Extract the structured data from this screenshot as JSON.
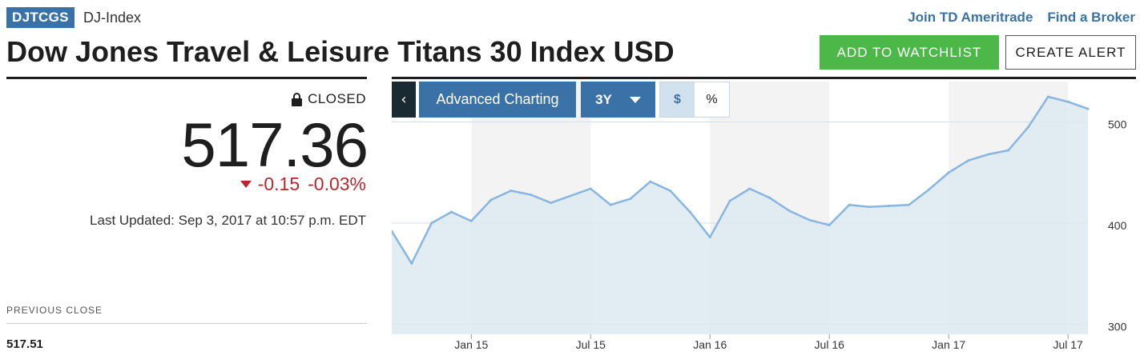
{
  "header": {
    "ticker": "DJTCGS",
    "index_type": "DJ-Index",
    "links": [
      "Join TD Ameritrade",
      "Find a Broker"
    ],
    "title": "Dow Jones Travel & Leisure Titans 30 Index USD",
    "watchlist_button": "ADD TO WATCHLIST",
    "alert_button": "CREATE ALERT"
  },
  "quote": {
    "status": "CLOSED",
    "status_icon": "lock-icon",
    "price": "517.36",
    "change": "-0.15",
    "change_percent": "-0.03%",
    "direction_icon": "down-triangle-icon",
    "last_updated": "Last Updated: Sep 3, 2017 at 10:57 p.m. EDT",
    "down_color": "#b5292d"
  },
  "stats": {
    "previous_close_label": "PREVIOUS CLOSE",
    "previous_close_value": "517.51"
  },
  "chart_toolbar": {
    "collapse_icon": "chevron-left-icon",
    "advanced_label": "Advanced Charting",
    "range_value": "3Y",
    "range_icon": "caret-down-icon",
    "dollar_label": "$",
    "percent_label": "%",
    "active_mode": "$",
    "accent_color": "#3a72a8"
  },
  "chart_data": {
    "type": "area",
    "x_ticks": [
      "Jan 15",
      "Jul 15",
      "Jan 16",
      "Jul 16",
      "Jan 17",
      "Jul 17"
    ],
    "y_ticks": [
      300,
      400,
      500
    ],
    "ylim": [
      290,
      540
    ],
    "grid": "horizontal",
    "line_color": "#88b6e0",
    "fill_color": "#dde9f1",
    "x": [
      "2014-09",
      "2014-10",
      "2014-11",
      "2014-12",
      "2015-01",
      "2015-02",
      "2015-03",
      "2015-04",
      "2015-05",
      "2015-06",
      "2015-07",
      "2015-08",
      "2015-09",
      "2015-10",
      "2015-11",
      "2015-12",
      "2016-01",
      "2016-02",
      "2016-03",
      "2016-04",
      "2016-05",
      "2016-06",
      "2016-07",
      "2016-08",
      "2016-09",
      "2016-10",
      "2016-11",
      "2016-12",
      "2017-01",
      "2017-02",
      "2017-03",
      "2017-04",
      "2017-05",
      "2017-06",
      "2017-07",
      "2017-08"
    ],
    "values": [
      392,
      360,
      400,
      411,
      402,
      423,
      432,
      428,
      420,
      427,
      434,
      418,
      424,
      441,
      432,
      411,
      386,
      422,
      434,
      425,
      412,
      403,
      398,
      418,
      416,
      417,
      418,
      433,
      450,
      462,
      468,
      472,
      495,
      525,
      520,
      513
    ]
  }
}
